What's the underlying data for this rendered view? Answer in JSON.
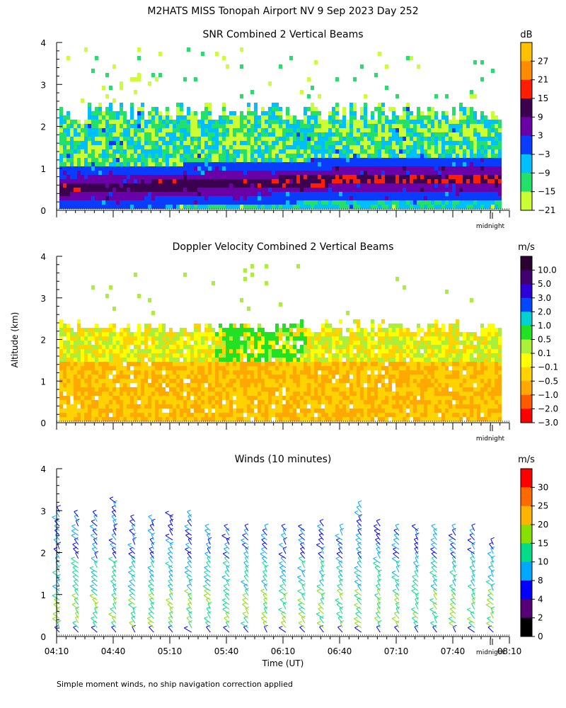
{
  "header": {
    "title": "M2HATS MISS Tonopah Airport NV   9 Sep 2023 Day 252"
  },
  "footer": {
    "note": "Simple moment winds, no ship navigation correction applied"
  },
  "shared": {
    "ylabel": "Altitude (km)",
    "xlabel": "Time (UT)",
    "y_ticks": [
      "0",
      "1",
      "2",
      "3",
      "4"
    ],
    "x_ticks": [
      "04:10",
      "04:40",
      "05:10",
      "05:40",
      "06:10",
      "06:40",
      "07:10",
      "07:40",
      "08:10"
    ],
    "midnight_label": "midnight",
    "xlim_hours": [
      4.1667,
      8.1667
    ],
    "ylim_km": [
      0,
      4
    ]
  },
  "chart_data": [
    {
      "type": "heatmap",
      "title": "SNR Combined 2 Vertical Beams",
      "unit": "dB",
      "colorbar": {
        "labels": [
          "27",
          "21",
          "15",
          "9",
          "3",
          "−3",
          "−9",
          "−15",
          "−21"
        ],
        "colors": [
          "#ffc000",
          "#ff8c00",
          "#ff1e00",
          "#3c0050",
          "#6a00a8",
          "#0a3cff",
          "#00bfff",
          "#22e06a",
          "#ccff33"
        ]
      },
      "signal_top_km": 2.4,
      "max_layer_km": [
        0.55,
        0.8
      ]
    },
    {
      "type": "heatmap",
      "title": "Doppler Velocity Combined 2 Vertical Beams",
      "unit": "m/s",
      "colorbar": {
        "labels": [
          "10.0",
          "5.0",
          "3.0",
          "2.0",
          "1.0",
          "0.5",
          "0.1",
          "−0.1",
          "−0.5",
          "−1.0",
          "−2.0",
          "−3.0"
        ],
        "colors": [
          "#2a0030",
          "#400070",
          "#2e00d8",
          "#0048ff",
          "#00d2d2",
          "#22e022",
          "#aaf03a",
          "#ffff00",
          "#ffd200",
          "#ffa800",
          "#ff5a00",
          "#ff0000"
        ]
      },
      "signal_top_km": 2.35
    },
    {
      "type": "scatter",
      "title": "Winds (10 minutes)",
      "unit": "m/s",
      "colorbar": {
        "labels": [
          "30",
          "25",
          "20",
          "15",
          "10",
          "8",
          "4",
          "2",
          "0"
        ],
        "colors": [
          "#ff0000",
          "#ff6a00",
          "#ffb400",
          "#88e000",
          "#00dd88",
          "#00a8ff",
          "#0000ff",
          "#550077",
          "#000000"
        ]
      },
      "profile_times_hours": [
        4.1667,
        4.3333,
        4.5,
        4.6667,
        4.8333,
        5.0,
        5.1667,
        5.3333,
        5.5,
        5.6667,
        5.8333,
        6.0,
        6.1667,
        6.3333,
        6.5,
        6.6667,
        6.8333,
        7.0,
        7.1667,
        7.3333,
        7.5,
        7.6667,
        7.8333,
        8.0
      ],
      "profile_top_km": [
        3.0,
        2.9,
        2.9,
        3.2,
        2.8,
        2.8,
        2.9,
        2.9,
        2.6,
        2.6,
        2.6,
        2.6,
        2.6,
        2.6,
        2.7,
        2.6,
        3.1,
        2.7,
        2.6,
        2.6,
        2.6,
        2.6,
        2.6,
        2.3
      ]
    }
  ]
}
